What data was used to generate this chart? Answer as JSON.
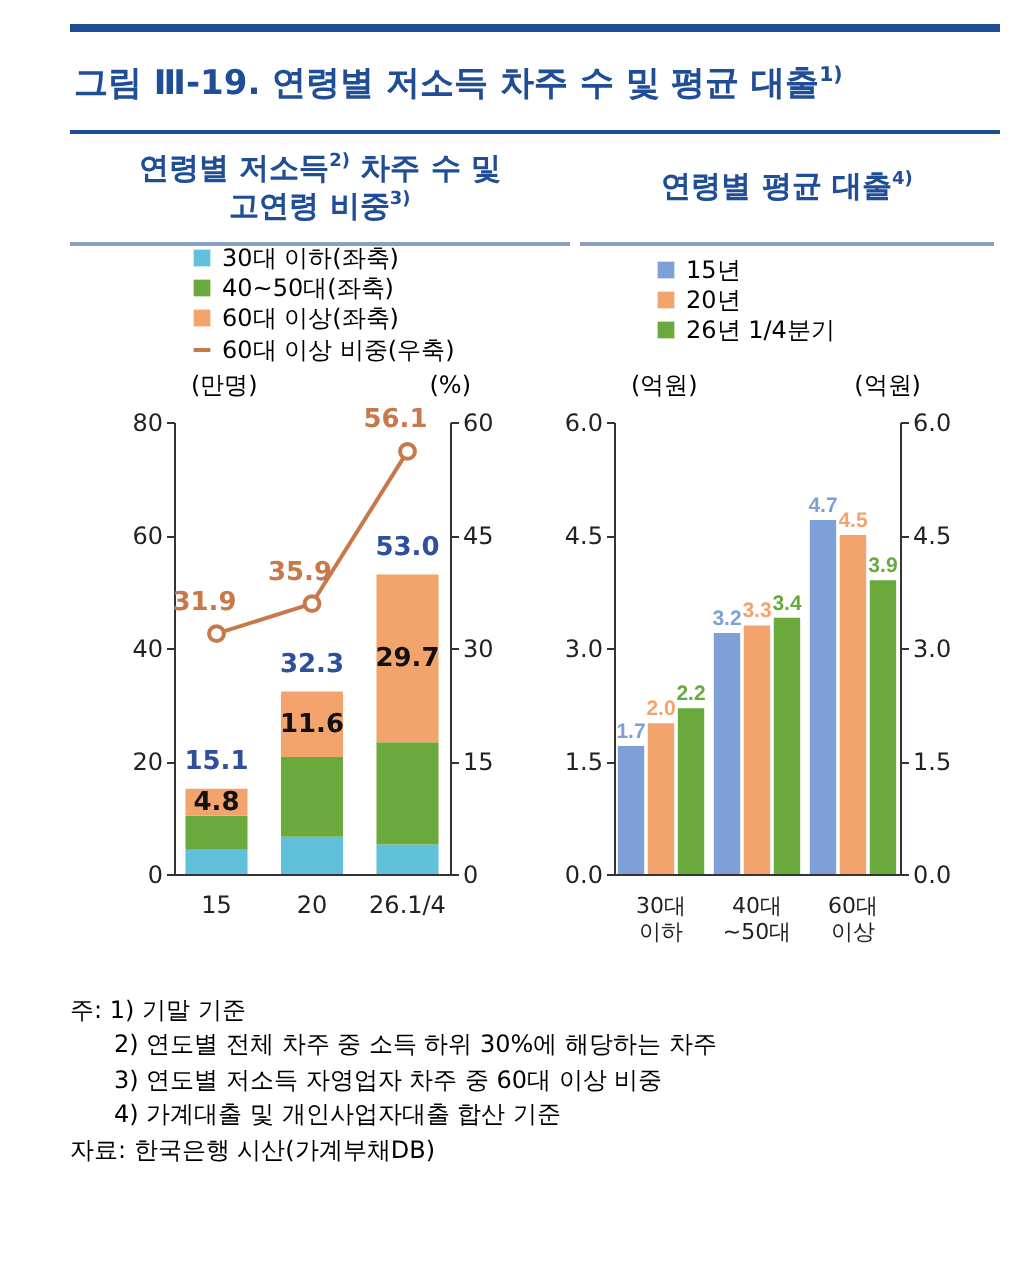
{
  "chart_data": [
    {
      "type": "bar",
      "title": "그림 Ⅲ-19. 연령별 저소득 차주 수 및 평균 대출$^{1)}$",
      "subtitle": "연령별 저소득$^{2)}$ 차주 수 및 고연령 비중$^{3)}$",
      "ylabel": "(만명)",
      "y2label": "(%)",
      "categories": [
        "15",
        "20",
        "26.1/4"
      ],
      "stacked": true,
      "legend": "top",
      "marker": "circle",
      "series": [
        {
          "name": "30대 이하(좌축)",
          "color": "#62c1da",
          "values": [
            4.3,
            6.6,
            5.2
          ]
        },
        {
          "name": "40~50대(좌축)",
          "color": "#6aaa3c",
          "values": [
            6.0,
            14.1,
            18.1
          ]
        },
        {
          "name": "60대 이상(좌축)",
          "color": "#f2a46c",
          "values": [
            4.8,
            11.6,
            29.7
          ],
          "value_labels": [
            "4.8",
            "11.6",
            "29.7"
          ]
        },
        {
          "name": "60대 이상 비중(우축)",
          "type": "line",
          "axis": "y2",
          "color": "#c8784a",
          "values": [
            31.9,
            35.9,
            56.1
          ],
          "value_labels": [
            "31.9",
            "35.9",
            "56.1"
          ]
        }
      ],
      "totals": [
        "15.1",
        "32.3",
        "53.0"
      ],
      "ylim": [
        0,
        80
      ],
      "yticks": [
        0,
        20,
        40,
        60,
        80
      ],
      "y2lim": [
        0,
        60
      ],
      "y2ticks": [
        0,
        15,
        30,
        45,
        60
      ]
    },
    {
      "type": "bar",
      "title": "연령별 평균 대출$^{4)}$",
      "ylabel": "(억원)",
      "y2label": "(억원)",
      "categories": [
        "30대 이하",
        "40대 ~50대",
        "60대 이상"
      ],
      "legend": "top",
      "series": [
        {
          "name": "15년",
          "color": "#7f9fd8",
          "values": [
            1.7,
            3.2,
            4.7
          ],
          "value_labels": [
            "1.7",
            "3.2",
            "4.7"
          ]
        },
        {
          "name": "20년",
          "color": "#f2a46c",
          "values": [
            2.0,
            3.3,
            4.5
          ],
          "value_labels": [
            "2.0",
            "3.3",
            "4.5"
          ]
        },
        {
          "name": "26년 1/4분기",
          "color": "#6aaa3c",
          "values": [
            2.2,
            3.4,
            3.9
          ],
          "value_labels": [
            "2.2",
            "3.4",
            "3.9"
          ]
        }
      ],
      "ylim": [
        0,
        6
      ],
      "yticks": [
        {
          "value": 0,
          "label": "0.0"
        },
        {
          "value": 1.5,
          "label": "1.5"
        },
        {
          "value": 3,
          "label": "3.0"
        },
        {
          "value": 4.5,
          "label": "4.5"
        },
        {
          "value": 6,
          "label": "6.0"
        }
      ],
      "y2lim": [
        0,
        6
      ],
      "y2ticks": [
        {
          "value": 0,
          "label": "0.0"
        },
        {
          "value": 1.5,
          "label": "1.5"
        },
        {
          "value": 3,
          "label": "3.0"
        },
        {
          "value": 4.5,
          "label": "4.5"
        },
        {
          "value": 6,
          "label": "6.0"
        }
      ],
      "annotations": [
        "주: 1) 기말 기준",
        "2) 연도별 전체 차주 중 소득 하위 30%에 해당하는 차주",
        "3) 연도별 저소득 자영업자 차주 중 60대 이상 비중",
        "4) 가계대출 및 개인사업자대출 합산 기준",
        "자료: 한국은행 시산(가계부채DB)"
      ]
    }
  ]
}
